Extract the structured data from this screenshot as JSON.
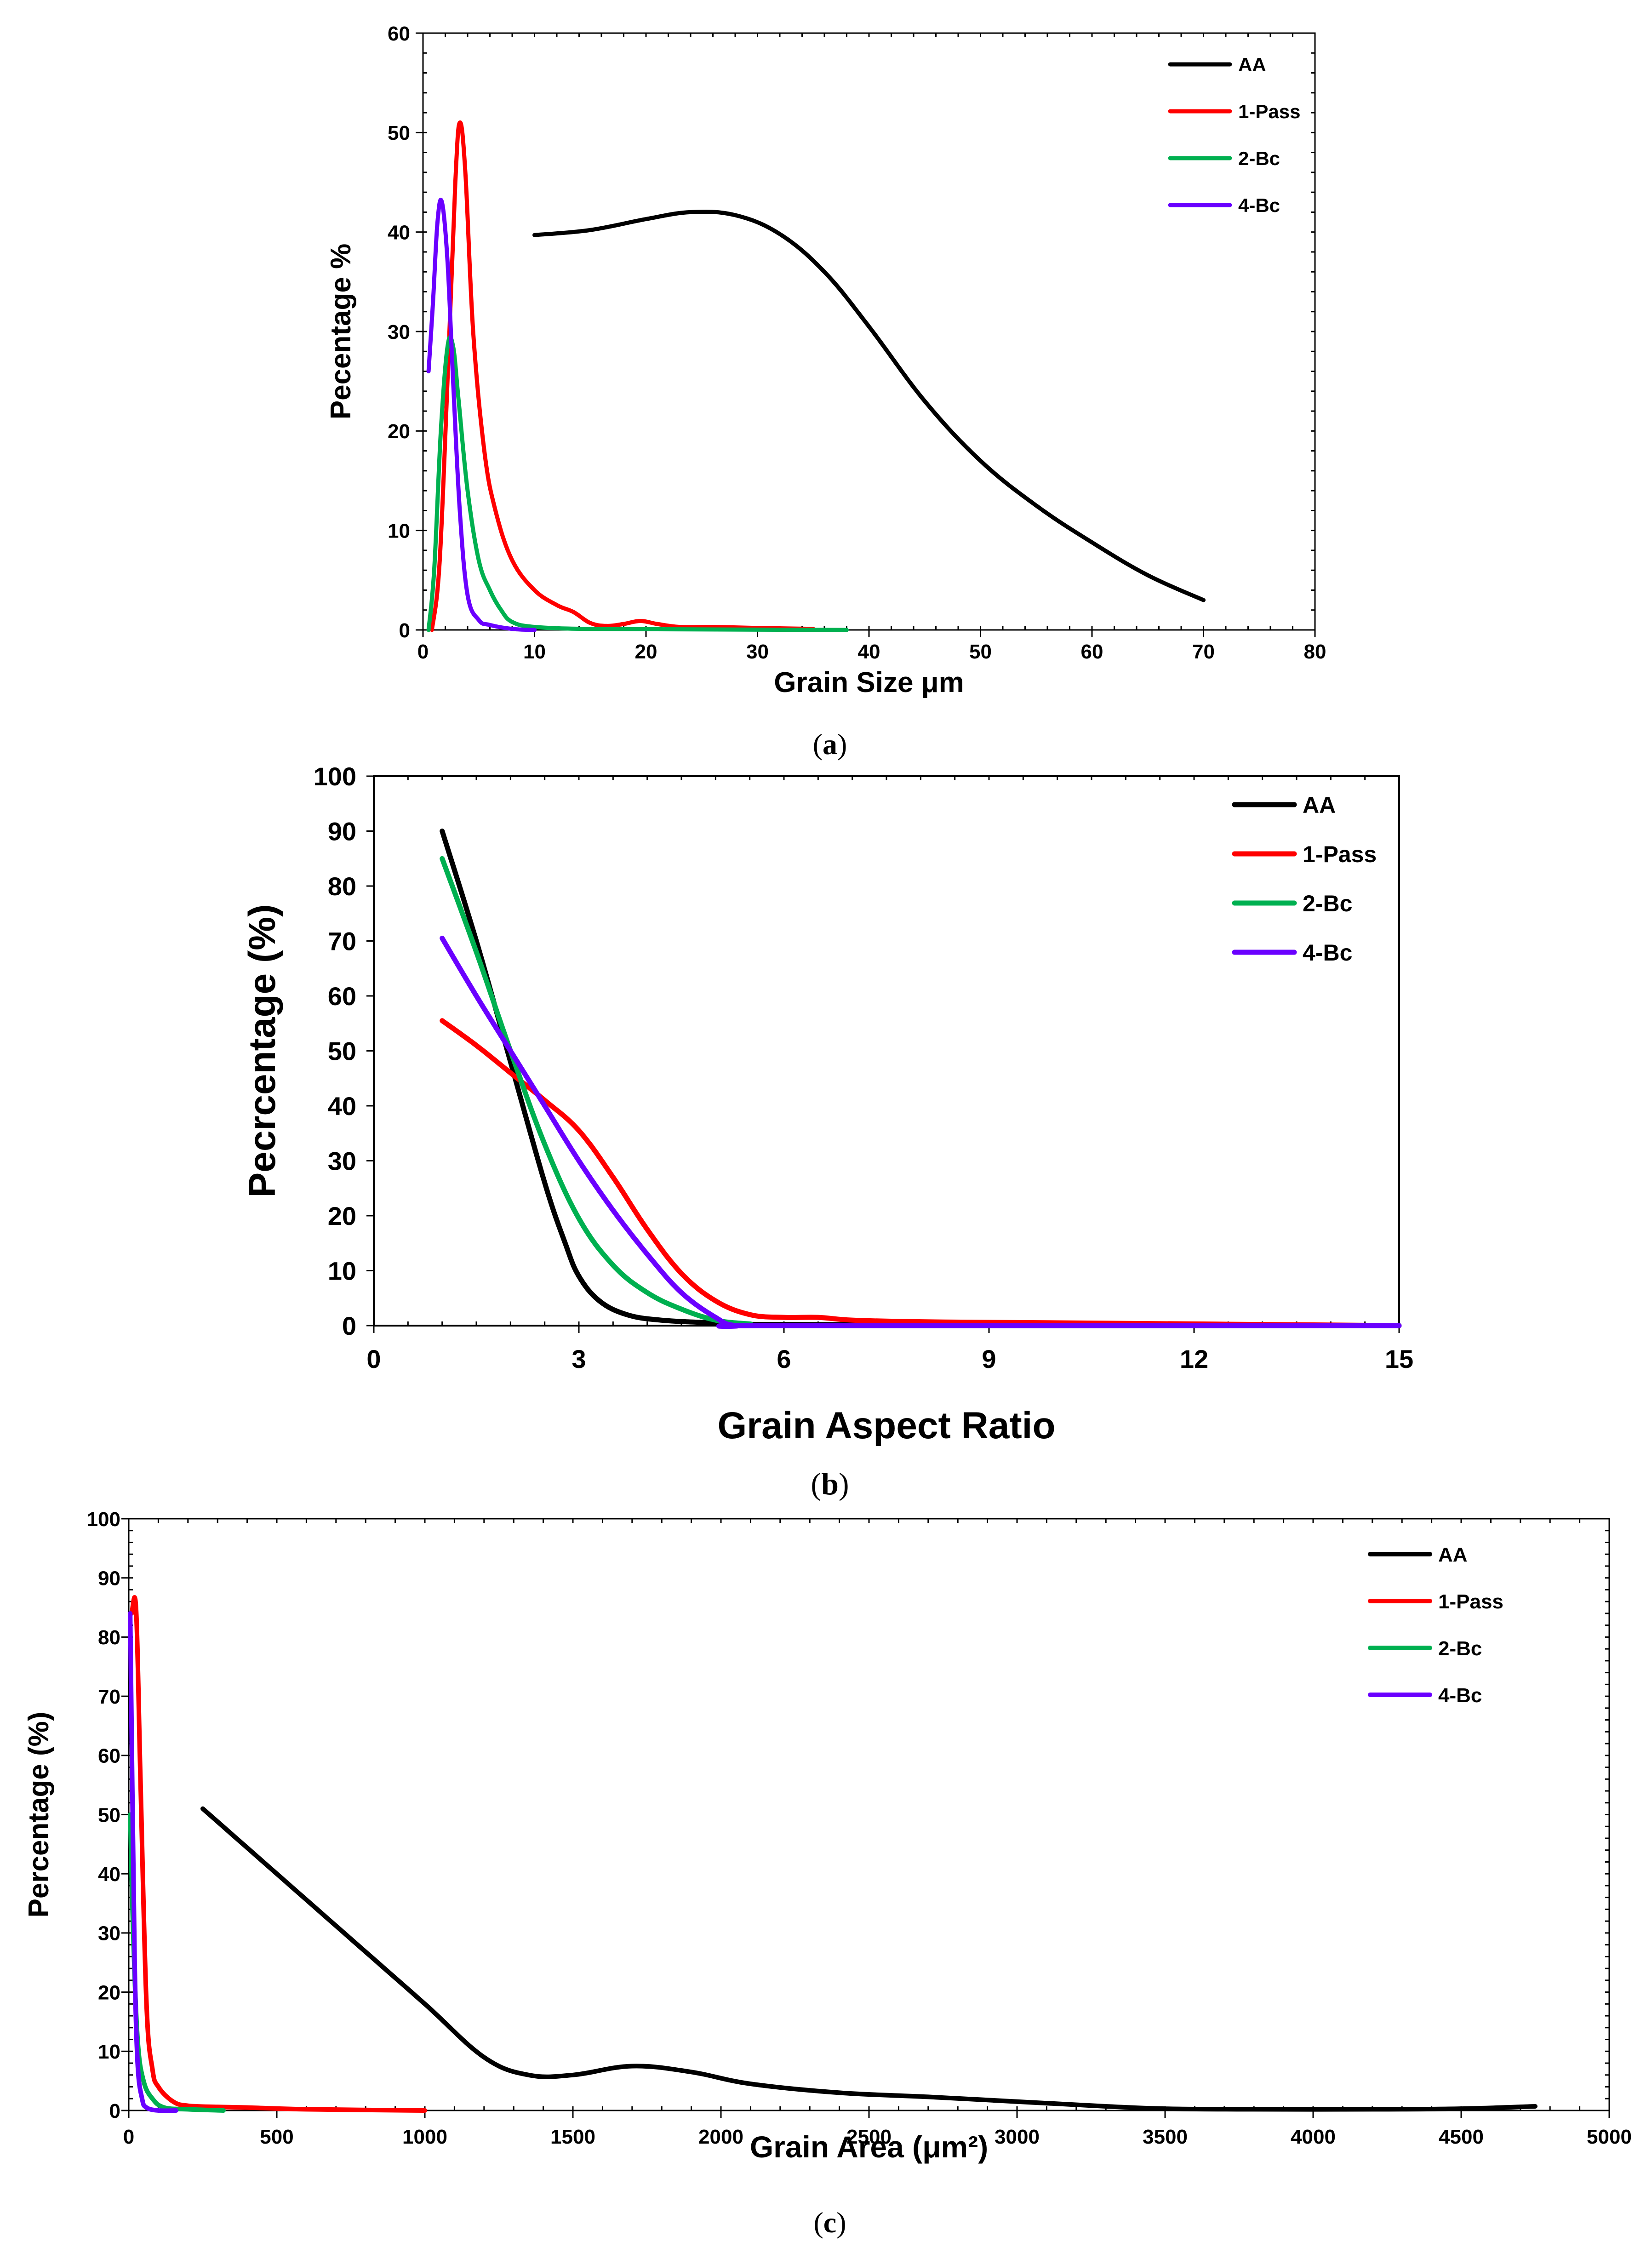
{
  "colors": {
    "AA": "#000000",
    "1-Pass": "#ff0000",
    "2-Bc": "#00b050",
    "4-Bc": "#6a00ff"
  },
  "chart_data": [
    {
      "id": "a",
      "type": "line",
      "caption": "(a)",
      "caption_parts": [
        "(",
        "a",
        ")"
      ],
      "xlabel": "Grain Size μm",
      "ylabel": "Pecentage %",
      "xlim": [
        0,
        80
      ],
      "ylim": [
        0,
        60
      ],
      "xticks": [
        0,
        10,
        20,
        30,
        40,
        50,
        60,
        70,
        80
      ],
      "yticks": [
        0,
        10,
        20,
        30,
        40,
        50,
        60
      ],
      "x_minor_step": 2,
      "y_minor_step": 2,
      "legend_position": "top-right",
      "series": [
        {
          "name": "AA",
          "x": [
            10,
            15,
            20,
            24,
            28,
            32,
            36,
            40,
            45,
            50,
            55,
            60,
            65,
            70
          ],
          "y": [
            39.7,
            40.2,
            41.3,
            42,
            41.7,
            39.8,
            36,
            30.5,
            23,
            17,
            12.5,
            8.8,
            5.5,
            3
          ]
        },
        {
          "name": "1-Pass",
          "x": [
            0.8,
            1.5,
            2.3,
            2.9,
            3.3,
            3.8,
            4.5,
            5.5,
            6.5,
            8,
            10,
            12,
            13.5,
            15,
            16.5,
            18,
            19.5,
            21,
            23,
            26,
            30,
            35
          ],
          "y": [
            0,
            7,
            28,
            45,
            51,
            46,
            30,
            18,
            12,
            7,
            4,
            2.5,
            1.8,
            0.7,
            0.4,
            0.6,
            0.9,
            0.6,
            0.3,
            0.3,
            0.2,
            0.1
          ]
        },
        {
          "name": "2-Bc",
          "x": [
            0.5,
            1,
            1.6,
            2.2,
            2.7,
            3.2,
            4,
            5,
            6,
            7,
            8,
            10,
            15,
            25,
            38
          ],
          "y": [
            0,
            6,
            20,
            28.5,
            28.5,
            23,
            14,
            7,
            4,
            2,
            0.8,
            0.3,
            0.1,
            0.05,
            0
          ],
          "y_style": "none"
        },
        {
          "name": "4-Bc",
          "x": [
            0.5,
            0.9,
            1.3,
            1.7,
            2.2,
            2.7,
            3.3,
            4,
            5,
            6,
            8,
            10
          ],
          "y": [
            26,
            33,
            41,
            43,
            37,
            25,
            12,
            3.5,
            1,
            0.5,
            0.1,
            0
          ]
        }
      ]
    },
    {
      "id": "b",
      "type": "line",
      "caption": "(b)",
      "caption_parts": [
        "(",
        "b",
        ")"
      ],
      "xlabel": "Grain Aspect Ratio",
      "ylabel": "Pecrcentage (%)",
      "xlim": [
        0,
        15
      ],
      "ylim": [
        0,
        100
      ],
      "xticks": [
        0,
        3,
        6,
        9,
        12,
        15
      ],
      "yticks": [
        0,
        10,
        20,
        30,
        40,
        50,
        60,
        70,
        80,
        90,
        100
      ],
      "x_minor_step": 0.5,
      "y_minor_step": 0,
      "legend_position": "top-right",
      "series": [
        {
          "name": "AA",
          "x": [
            1,
            1.5,
            2,
            2.5,
            2.8,
            3,
            3.3,
            3.7,
            4.2,
            5,
            6,
            15
          ],
          "y": [
            90,
            70,
            48,
            26,
            15,
            9,
            4.5,
            2,
            1,
            0.5,
            0.2,
            0
          ]
        },
        {
          "name": "1-Pass",
          "x": [
            1,
            1.5,
            2,
            2.5,
            3,
            3.5,
            4,
            4.5,
            5,
            5.5,
            6,
            6.5,
            7,
            8,
            10,
            15
          ],
          "y": [
            55.5,
            51,
            46,
            41,
            35.5,
            27,
            17.5,
            9.5,
            4.5,
            2,
            1.5,
            1.5,
            1,
            0.7,
            0.5,
            0
          ]
        },
        {
          "name": "2-Bc",
          "x": [
            1,
            1.5,
            2,
            2.5,
            3,
            3.5,
            4,
            4.5,
            5,
            5.5,
            6,
            15
          ],
          "y": [
            85,
            68,
            50,
            33,
            19.5,
            11,
            6,
            3,
            1,
            0.3,
            0,
            0
          ]
        },
        {
          "name": "4-Bc",
          "x": [
            1,
            1.5,
            2,
            2.5,
            3,
            3.5,
            4,
            4.5,
            5,
            5.3,
            6,
            15
          ],
          "y": [
            70.5,
            60,
            50,
            40,
            30,
            21,
            13,
            6,
            1.5,
            0,
            0,
            0
          ]
        }
      ]
    },
    {
      "id": "c",
      "type": "line",
      "caption": "(c)",
      "caption_parts": [
        "(",
        "c",
        ")"
      ],
      "xlabel": "Grain Area (μm²)",
      "ylabel": "Percentage (%)",
      "xlim": [
        0,
        5000
      ],
      "ylim": [
        0,
        100
      ],
      "xticks": [
        0,
        500,
        1000,
        1500,
        2000,
        2500,
        3000,
        3500,
        4000,
        4500,
        5000
      ],
      "yticks": [
        0,
        10,
        20,
        30,
        40,
        50,
        60,
        70,
        80,
        90,
        100
      ],
      "x_minor_step": 100,
      "y_minor_step": 2,
      "legend_position": "top-right",
      "series": [
        {
          "name": "AA",
          "x": [
            250,
            500,
            750,
            1000,
            1200,
            1350,
            1500,
            1700,
            1900,
            2100,
            2400,
            2700,
            3000,
            3300,
            3500,
            3800,
            4200,
            4500,
            4750
          ],
          "y": [
            51,
            40,
            29,
            18,
            9,
            6,
            6,
            7.5,
            6.5,
            4.5,
            3,
            2.3,
            1.5,
            0.7,
            0.3,
            0.2,
            0.2,
            0.3,
            0.7
          ]
        },
        {
          "name": "1-Pass",
          "x": [
            10,
            25,
            40,
            60,
            80,
            100,
            150,
            200,
            300,
            400,
            600,
            1000
          ],
          "y": [
            84,
            84.5,
            55,
            18,
            7,
            4,
            1.5,
            0.8,
            0.6,
            0.5,
            0.2,
            0
          ]
        },
        {
          "name": "2-Bc",
          "x": [
            5,
            15,
            30,
            50,
            80,
            120,
            200,
            320
          ],
          "y": [
            50,
            30,
            12,
            5,
            2,
            0.5,
            0.2,
            0
          ]
        },
        {
          "name": "4-Bc",
          "x": [
            5,
            12,
            20,
            30,
            45,
            60,
            100,
            160
          ],
          "y": [
            84,
            55,
            25,
            8,
            2,
            0.5,
            0,
            0
          ]
        }
      ]
    }
  ]
}
